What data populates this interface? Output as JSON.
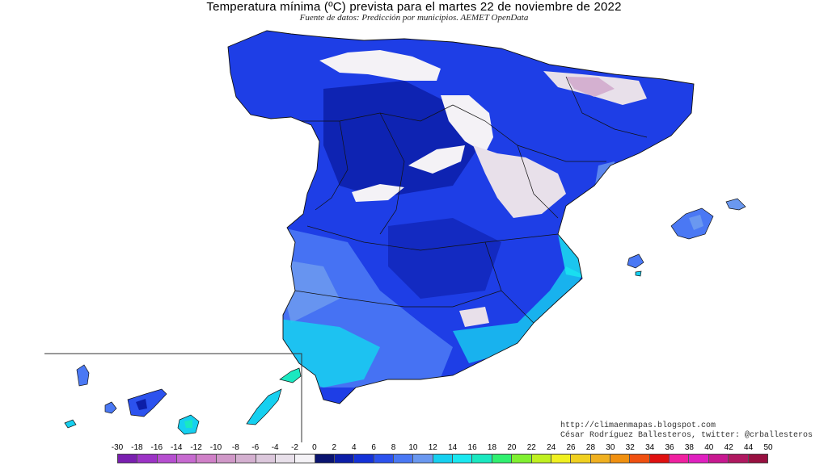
{
  "header": {
    "title": "Temperatura mínima (ºC) prevista para el martes 22 de noviembre de 2022",
    "source": "Fuente de datos: Predicción por municipios. AEMET OpenData"
  },
  "credits": {
    "blog": "http://climaenmapas.blogspot.com",
    "author": "César Rodríguez Ballesteros, twitter: @crballesteros"
  },
  "legend": {
    "ticks": [
      "-30",
      "-18",
      "-16",
      "-14",
      "-12",
      "-10",
      "-8",
      "-6",
      "-4",
      "-2",
      "0",
      "2",
      "4",
      "6",
      "8",
      "10",
      "12",
      "14",
      "16",
      "18",
      "20",
      "22",
      "24",
      "26",
      "28",
      "30",
      "32",
      "34",
      "36",
      "38",
      "40",
      "42",
      "44",
      "50"
    ],
    "colors": [
      "#7a1fb0",
      "#9c33c6",
      "#b64fd0",
      "#c76ad0",
      "#d080c8",
      "#d098c8",
      "#d4b0d0",
      "#dcc8dc",
      "#e8e0ea",
      "#f4f2f6",
      "#0a1470",
      "#0c1ea8",
      "#1432d8",
      "#2c52ee",
      "#4a78f4",
      "#6a98f0",
      "#16d0f0",
      "#1ae8f0",
      "#1ae8c0",
      "#30f070",
      "#80f030",
      "#c0f020",
      "#f0f020",
      "#f0d020",
      "#f0b020",
      "#f09010",
      "#f05010",
      "#e01010",
      "#f020a0",
      "#e020c0",
      "#c81890",
      "#b01860",
      "#981040"
    ]
  }
}
